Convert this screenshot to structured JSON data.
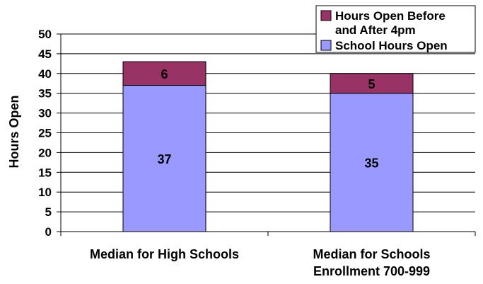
{
  "chart_data": {
    "type": "bar",
    "stacked": true,
    "ylabel": "Hours Open",
    "ylim": [
      0,
      50
    ],
    "yticks": [
      0,
      5,
      10,
      15,
      20,
      25,
      30,
      35,
      40,
      45,
      50
    ],
    "grid": true,
    "legend_position": "top-right",
    "categories": [
      [
        "Median for High Schools"
      ],
      [
        "Median for Schools",
        "Enrollment 700-999"
      ]
    ],
    "series": [
      {
        "name": "School Hours Open",
        "values": [
          37,
          35
        ],
        "color": "#9999ff"
      },
      {
        "name": "Hours Open Before and After 4pm",
        "values": [
          6,
          5
        ],
        "color": "#993366"
      }
    ],
    "legend": [
      {
        "label_lines": [
          "Hours Open Before",
          "and After 4pm"
        ],
        "color": "#993366"
      },
      {
        "label_lines": [
          "School Hours Open"
        ],
        "color": "#9999ff"
      }
    ]
  }
}
